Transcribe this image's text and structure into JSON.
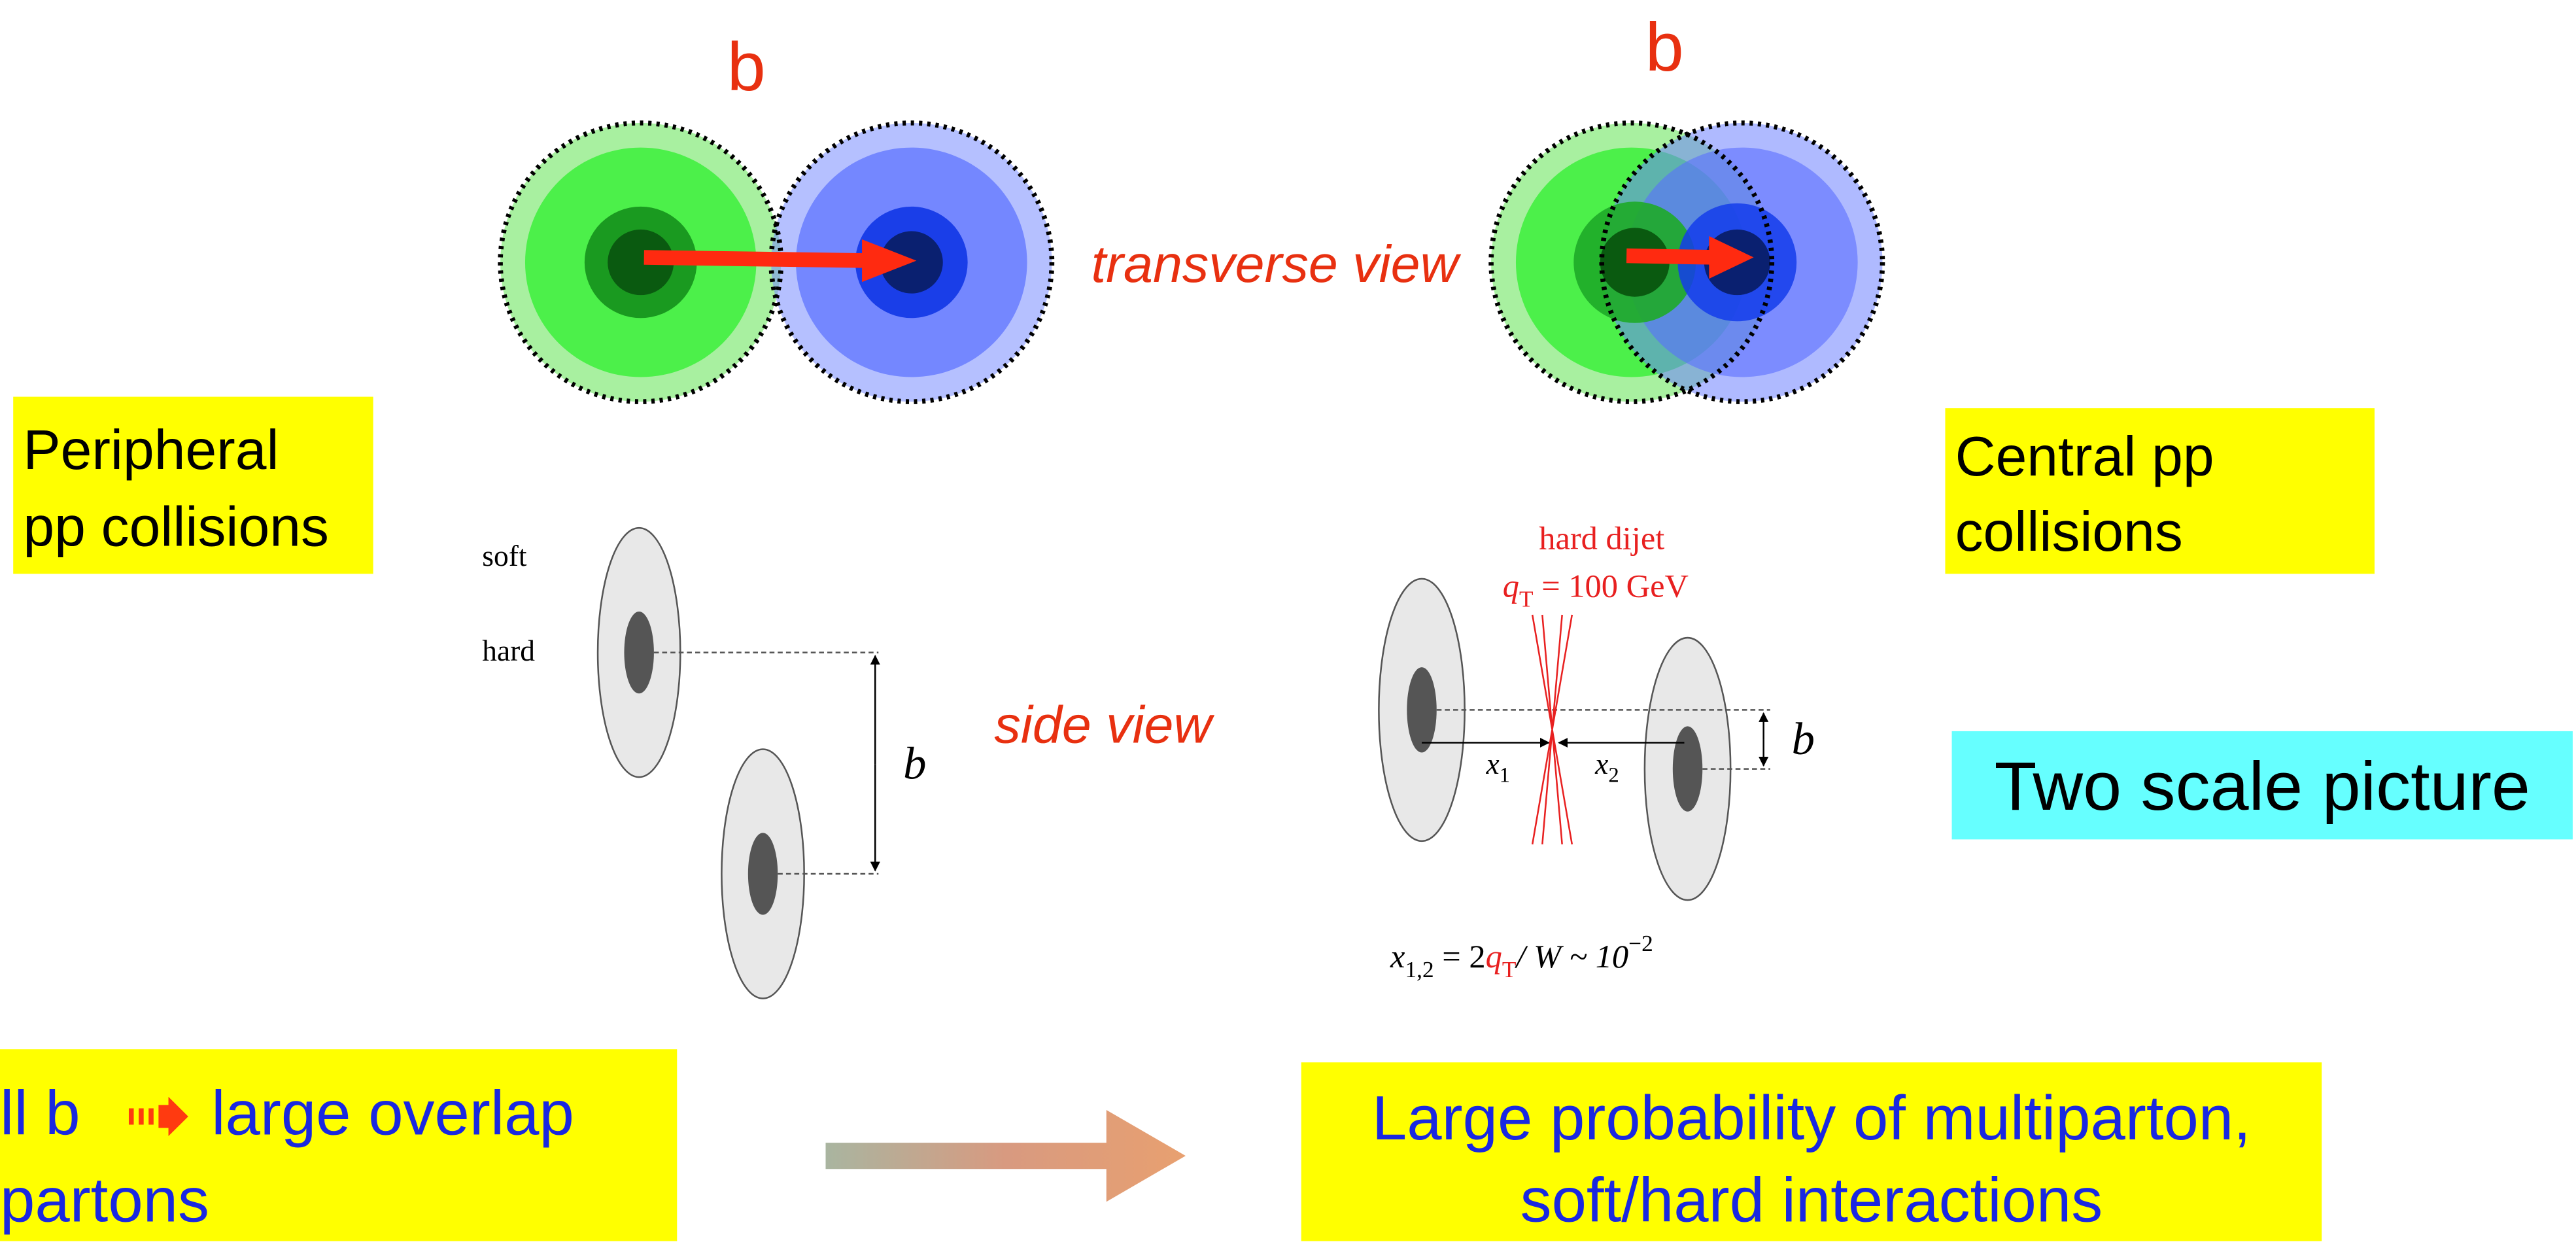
{
  "transverse": {
    "b_left": "b",
    "b_right": "b",
    "label": "transverse view"
  },
  "peripheral": {
    "lines": [
      "Peripheral",
      "pp collisions"
    ]
  },
  "central": {
    "lines": [
      "Central pp",
      "collisions"
    ]
  },
  "side": {
    "soft": "soft",
    "hard": "hard",
    "b": "b",
    "label": "side view"
  },
  "dijet": {
    "title": "hard dijet",
    "q": "q",
    "q_sub": "T",
    "q_rest": " = 100 GeV",
    "x1": "x",
    "x1_sub": "1",
    "x2": "x",
    "x2_sub": "2",
    "b": "b"
  },
  "formula": {
    "x": "x",
    "x_sub": "1,2",
    "eq": " =  2",
    "q": "q",
    "q_sub": "T",
    "rest": "/ W ~ 10",
    "exp": "−2"
  },
  "two_scale": "Two scale picture",
  "bottom_left": {
    "line1_a": "ll b",
    "line1_b": "large overlap",
    "line2": "partons"
  },
  "bottom_right": {
    "lines": [
      "Large probability of multiparton,",
      "soft/hard interactions"
    ]
  }
}
